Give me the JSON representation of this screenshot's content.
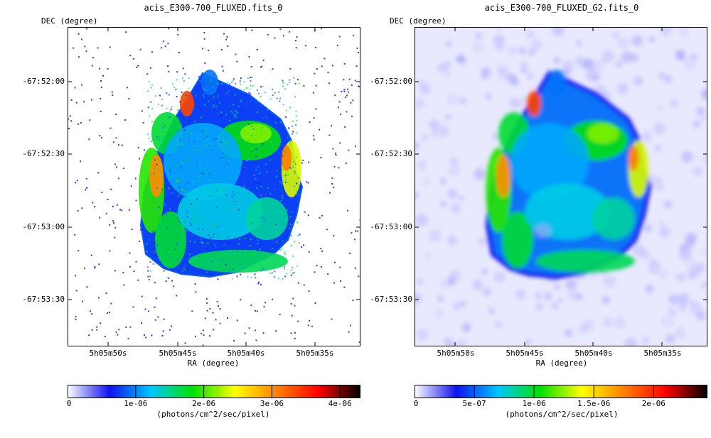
{
  "chart_data": [
    {
      "type": "heatmap",
      "title": "acis_E300-700_FLUXED.fits_0",
      "xlabel": "RA (degree)",
      "ylabel": "DEC (degree)",
      "x_ticks": [
        "5h05m50s",
        "5h05m45s",
        "5h05m40s",
        "5h05m35s"
      ],
      "y_ticks": [
        "-67:52:00",
        "-67:52:30",
        "-67:53:00",
        "-67:53:30"
      ],
      "colorbar": {
        "label": "(photons/cm^2/sec/pixel)",
        "ticks": [
          "0",
          "1e-06",
          "2e-06",
          "3e-06",
          "4e-06"
        ],
        "tick_values": [
          0,
          1e-06,
          2e-06,
          3e-06,
          4e-06
        ],
        "max": 4.3e-06
      },
      "colormap": [
        "#ffffff",
        "#1010f0",
        "#00c8ff",
        "#00e000",
        "#ffff00",
        "#ff8000",
        "#ff0000",
        "#000000"
      ]
    },
    {
      "type": "heatmap",
      "title": "acis_E300-700_FLUXED_G2.fits_0",
      "xlabel": "RA (degree)",
      "ylabel": "DEC (degree)",
      "x_ticks": [
        "5h05m50s",
        "5h05m45s",
        "5h05m40s",
        "5h05m35s"
      ],
      "y_ticks": [
        "-67:52:00",
        "-67:52:30",
        "-67:53:00",
        "-67:53:30"
      ],
      "colorbar": {
        "label": "(photons/cm^2/sec/pixel)",
        "ticks": [
          "0",
          "5e-07",
          "1e-06",
          "1.5e-06",
          "2e-06"
        ],
        "tick_values": [
          0,
          5e-07,
          1e-06,
          1.5e-06,
          2e-06
        ],
        "max": 2.45e-06
      },
      "colormap": [
        "#ffffff",
        "#1010f0",
        "#00c8ff",
        "#00e000",
        "#ffff00",
        "#ff8000",
        "#ff0000",
        "#000000"
      ]
    }
  ]
}
